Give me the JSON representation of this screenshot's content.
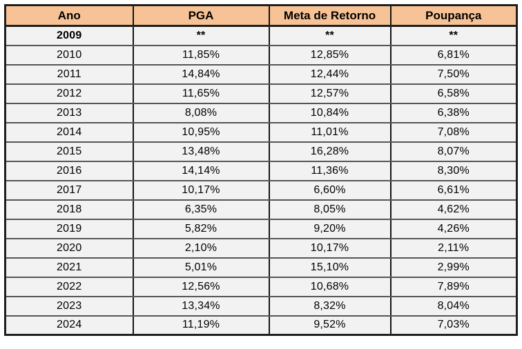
{
  "chart_data": {
    "type": "table",
    "title": "",
    "columns": [
      "Ano",
      "PGA",
      "Meta de Retorno",
      "Poupança"
    ],
    "rows": [
      [
        "2009",
        "**",
        "**",
        "**"
      ],
      [
        "2010",
        "11,85%",
        "12,85%",
        "6,81%"
      ],
      [
        "2011",
        "14,84%",
        "12,44%",
        "7,50%"
      ],
      [
        "2012",
        "11,65%",
        "12,57%",
        "6,58%"
      ],
      [
        "2013",
        "8,08%",
        "10,84%",
        "6,38%"
      ],
      [
        "2014",
        "10,95%",
        "11,01%",
        "7,08%"
      ],
      [
        "2015",
        "13,48%",
        "16,28%",
        "8,07%"
      ],
      [
        "2016",
        "14,14%",
        "11,36%",
        "8,30%"
      ],
      [
        "2017",
        "10,17%",
        "6,60%",
        "6,61%"
      ],
      [
        "2018",
        "6,35%",
        "8,05%",
        "4,62%"
      ],
      [
        "2019",
        "5,82%",
        "9,20%",
        "4,26%"
      ],
      [
        "2020",
        "2,10%",
        "10,17%",
        "2,11%"
      ],
      [
        "2021",
        "5,01%",
        "15,10%",
        "2,99%"
      ],
      [
        "2022",
        "12,56%",
        "10,68%",
        "7,89%"
      ],
      [
        "2023",
        "13,34%",
        "8,32%",
        "8,04%"
      ],
      [
        "2024",
        "11,19%",
        "9,52%",
        "7,03%"
      ]
    ],
    "layout": {
      "grid": "full-borders",
      "header_position": "top"
    }
  },
  "styles": {
    "header_bg": "#F7C396",
    "row_bg": "#F2F2F2",
    "border_outer": "#1F1F1F",
    "border_vertical": "#141414",
    "row_divider": "#555555",
    "text_color": "#000000",
    "page_bg": "#FFFFFF"
  }
}
